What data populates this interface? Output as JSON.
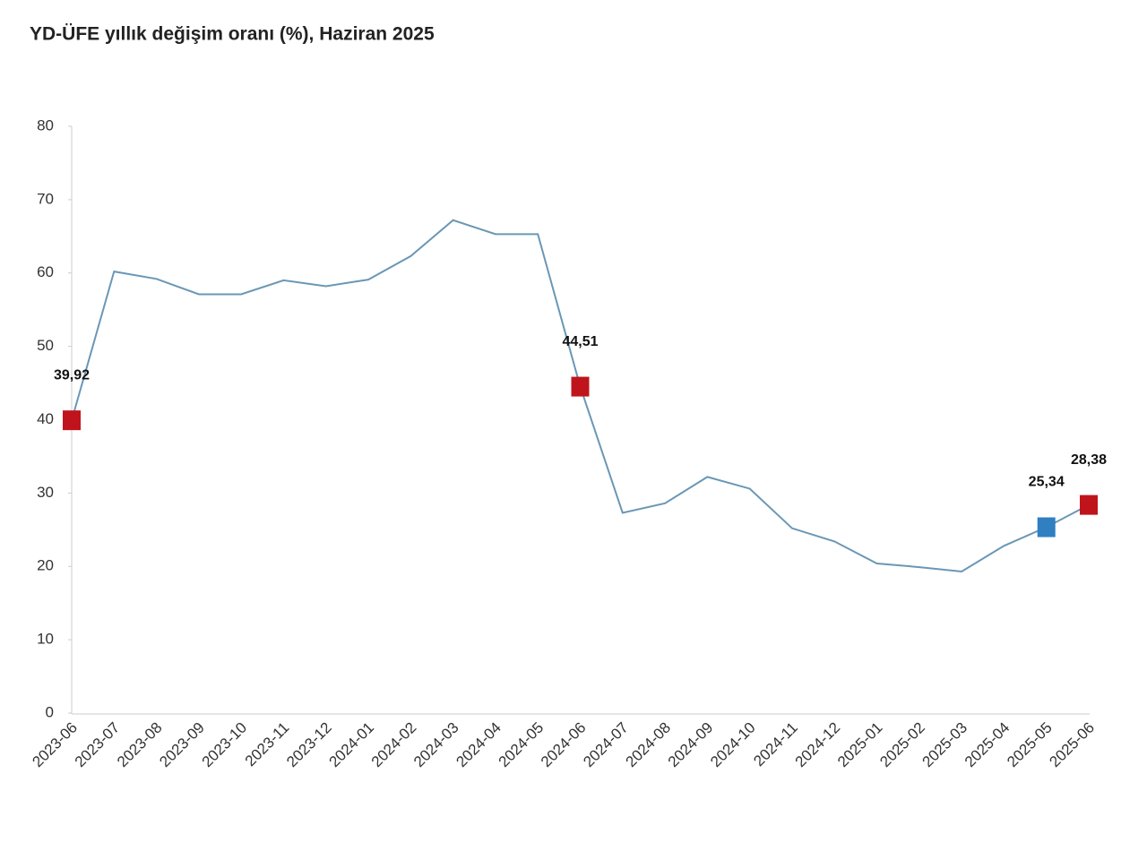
{
  "chart_data": {
    "type": "line",
    "title": "YD-ÜFE yıllık değişim oranı (%), Haziran 2025",
    "categories": [
      "2023-06",
      "2023-07",
      "2023-08",
      "2023-09",
      "2023-10",
      "2023-11",
      "2023-12",
      "2024-01",
      "2024-02",
      "2024-03",
      "2024-04",
      "2024-05",
      "2024-06",
      "2024-07",
      "2024-08",
      "2024-09",
      "2024-10",
      "2024-11",
      "2024-12",
      "2025-01",
      "2025-02",
      "2025-03",
      "2025-04",
      "2025-05",
      "2025-06"
    ],
    "series": [
      {
        "color": "#6a97b5",
        "values": [
          39.92,
          60.2,
          59.2,
          57.1,
          57.1,
          59.0,
          58.2,
          59.1,
          62.3,
          67.2,
          65.3,
          65.3,
          44.51,
          27.3,
          28.6,
          32.2,
          30.6,
          25.2,
          23.4,
          20.4,
          19.9,
          19.3,
          22.8,
          25.34,
          28.38
        ],
        "value_labels": [
          "39,92",
          null,
          null,
          null,
          null,
          null,
          null,
          null,
          null,
          null,
          null,
          null,
          "44,51",
          null,
          null,
          null,
          null,
          null,
          null,
          null,
          null,
          null,
          null,
          "25,34",
          "28,38"
        ],
        "marker_colors": [
          "#c0141c",
          null,
          null,
          null,
          null,
          null,
          null,
          null,
          null,
          null,
          null,
          null,
          "#c0141c",
          null,
          null,
          null,
          null,
          null,
          null,
          null,
          null,
          null,
          null,
          "#2f7fc1",
          "#c0141c"
        ]
      }
    ],
    "ylim": [
      0,
      80
    ],
    "yticks": [
      0,
      10,
      20,
      30,
      40,
      50,
      60,
      70,
      80
    ],
    "grid": false
  }
}
